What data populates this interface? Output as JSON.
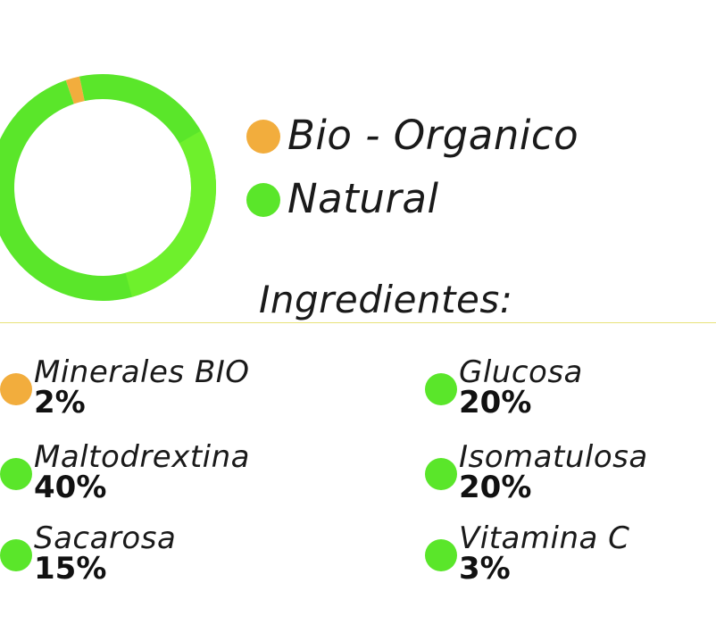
{
  "colors": {
    "organic": "#f2ad3d",
    "natural": "#5ae62a",
    "natural_light": "#6ef02c",
    "divider": "#e8e27a"
  },
  "chart_data": {
    "type": "pie",
    "donut": true,
    "legend_position": "right",
    "categories": [
      "Bio - Organico",
      "Natural"
    ],
    "values": [
      2,
      98
    ]
  },
  "legend": {
    "items": [
      {
        "label": "Bio - Organico",
        "color_key": "organic"
      },
      {
        "label": "Natural",
        "color_key": "natural"
      }
    ]
  },
  "ingredients": {
    "heading": "Ingredientes:",
    "items": [
      {
        "name": "Minerales BIO",
        "percent": "2%",
        "color_key": "organic"
      },
      {
        "name": "Glucosa",
        "percent": "20%",
        "color_key": "natural"
      },
      {
        "name": "Maltodrextina",
        "percent": "40%",
        "color_key": "natural"
      },
      {
        "name": "Isomatulosa",
        "percent": "20%",
        "color_key": "natural"
      },
      {
        "name": "Sacarosa",
        "percent": "15%",
        "color_key": "natural"
      },
      {
        "name": "Vitamina C",
        "percent": "3%",
        "color_key": "natural"
      }
    ]
  }
}
